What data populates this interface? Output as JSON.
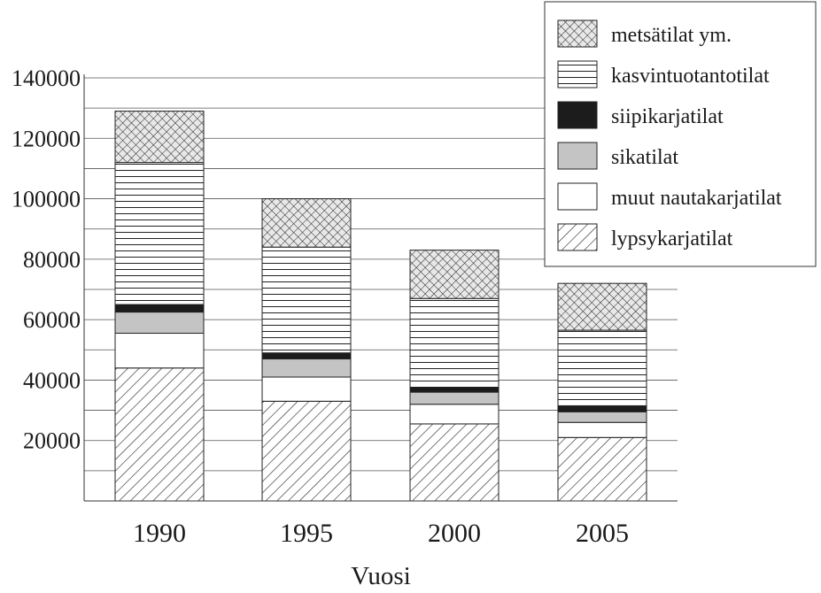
{
  "chart_data": {
    "type": "bar",
    "stacked": true,
    "title": "",
    "xlabel": "Vuosi",
    "ylabel": "",
    "categories": [
      "1990",
      "1995",
      "2000",
      "2005"
    ],
    "ylim": [
      0,
      140000
    ],
    "yticks": [
      20000,
      40000,
      60000,
      80000,
      100000,
      120000,
      140000
    ],
    "ytick_labels": [
      "20000",
      "40000",
      "60000",
      "80000",
      "100000",
      "120000",
      "140000"
    ],
    "grid": true,
    "legend_position": "top-right",
    "series": [
      {
        "name": "lypsykarjatilat",
        "pattern": "diagonal-hatch",
        "values": [
          44000,
          33000,
          25500,
          21000
        ]
      },
      {
        "name": "muut nautakarjatilat",
        "pattern": "white",
        "values": [
          11500,
          8000,
          6500,
          5000
        ]
      },
      {
        "name": "sikatilat",
        "pattern": "light-gray",
        "values": [
          7000,
          6000,
          4000,
          3500
        ]
      },
      {
        "name": "siipikarjatilat",
        "pattern": "black",
        "values": [
          2500,
          2000,
          1500,
          2000
        ]
      },
      {
        "name": "kasvintuotantotilat",
        "pattern": "horizontal-lines",
        "values": [
          47000,
          35000,
          29500,
          25000
        ]
      },
      {
        "name": "metsätilat ym.",
        "pattern": "crosshatch",
        "values": [
          17000,
          16000,
          16000,
          15500
        ]
      }
    ],
    "legend_order": [
      "metsätilat ym.",
      "kasvintuotantotilat",
      "siipikarjatilat",
      "sikatilat",
      "muut nautakarjatilat",
      "lypsykarjatilat"
    ]
  }
}
